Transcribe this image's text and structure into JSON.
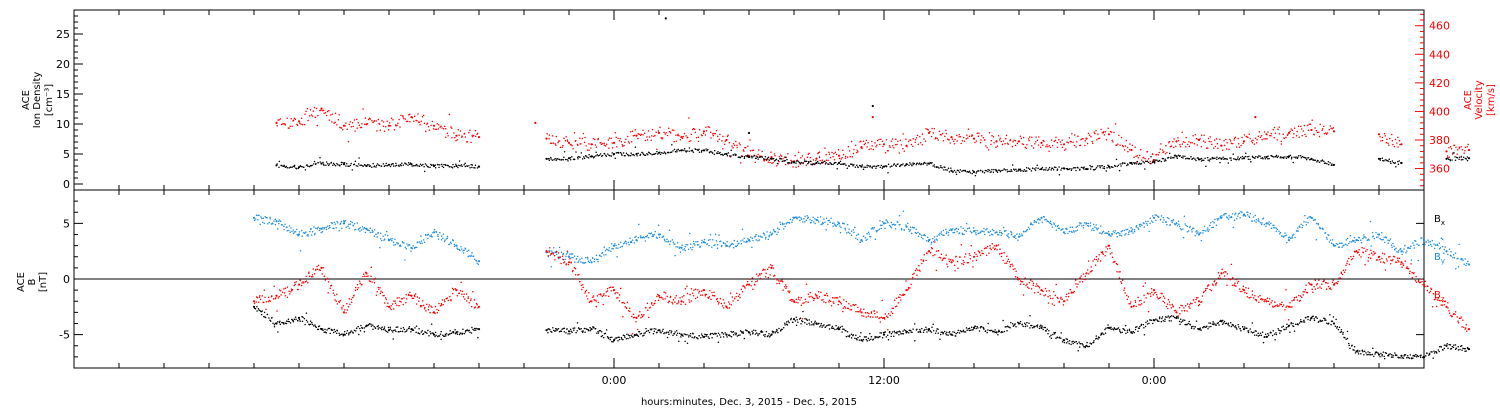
{
  "chart_data": [
    {
      "type": "scatter",
      "panel": "top",
      "left_axis": {
        "label_lines": [
          "ACE",
          "Ion Density",
          "[cm⁻³]"
        ],
        "range": [
          -1,
          29
        ],
        "ticks": [
          0,
          5,
          10,
          15,
          20,
          25
        ],
        "color": "#000000"
      },
      "right_axis": {
        "label_lines": [
          "ACE",
          "Velocity",
          "[km/s]"
        ],
        "range": [
          345,
          471
        ],
        "ticks": [
          360,
          380,
          400,
          420,
          440,
          460
        ],
        "color": "#ff0000"
      },
      "series": [
        {
          "axis": "left",
          "color": "#000000",
          "points": [
            [
              -15,
              3.1
            ],
            [
              -14,
              2.8
            ],
            [
              -13,
              3.4
            ],
            [
              -12,
              3.3
            ],
            [
              -11,
              3.0
            ],
            [
              -10,
              3.2
            ],
            [
              -9,
              3.3
            ],
            [
              -8,
              3.0
            ],
            [
              -7,
              3.0
            ],
            [
              -6,
              2.9
            ],
            [
              -3,
              4.2
            ],
            [
              -2,
              4.3
            ],
            [
              -1,
              4.6
            ],
            [
              0,
              5.0
            ],
            [
              1,
              5.0
            ],
            [
              2,
              5.2
            ],
            [
              3,
              5.6
            ],
            [
              4,
              5.6
            ],
            [
              5,
              5.0
            ],
            [
              6,
              4.5
            ],
            [
              7,
              4.2
            ],
            [
              8,
              3.6
            ],
            [
              9,
              3.5
            ],
            [
              10,
              3.5
            ],
            [
              11,
              2.9
            ],
            [
              12,
              2.9
            ],
            [
              13,
              3.3
            ],
            [
              14,
              3.4
            ],
            [
              15,
              2.2
            ],
            [
              16,
              2.0
            ],
            [
              17,
              2.2
            ],
            [
              18,
              2.4
            ],
            [
              19,
              2.5
            ],
            [
              20,
              2.6
            ],
            [
              21,
              2.5
            ],
            [
              22,
              2.9
            ],
            [
              23,
              3.5
            ],
            [
              24,
              3.7
            ],
            [
              25,
              4.6
            ],
            [
              26,
              4.1
            ],
            [
              27,
              4.2
            ],
            [
              28,
              4.3
            ],
            [
              29,
              4.5
            ],
            [
              30,
              4.6
            ],
            [
              31,
              4.2
            ],
            [
              32,
              3.2
            ],
            [
              34,
              4.2
            ],
            [
              35,
              3.5
            ],
            [
              37,
              4.2
            ],
            [
              38,
              4.3
            ]
          ],
          "extra_points": [
            [
              2.3,
              27.6
            ],
            [
              11.5,
              13.0
            ],
            [
              6.0,
              8.5
            ]
          ]
        },
        {
          "axis": "right",
          "color": "#ff0000",
          "points": [
            [
              -15,
              392
            ],
            [
              -14,
              393
            ],
            [
              -13,
              402
            ],
            [
              -12,
              390
            ],
            [
              -11,
              391
            ],
            [
              -10,
              390
            ],
            [
              -9,
              396
            ],
            [
              -8,
              390
            ],
            [
              -7,
              383
            ],
            [
              -6,
              382
            ],
            [
              -3,
              381
            ],
            [
              -2,
              378
            ],
            [
              -1,
              377
            ],
            [
              0,
              378
            ],
            [
              1,
              383
            ],
            [
              2,
              385
            ],
            [
              3,
              382
            ],
            [
              4,
              386
            ],
            [
              5,
              380
            ],
            [
              6,
              369
            ],
            [
              7,
              368
            ],
            [
              8,
              365
            ],
            [
              9,
              367
            ],
            [
              10,
              369
            ],
            [
              11,
              375
            ],
            [
              12,
              377
            ],
            [
              13,
              376
            ],
            [
              14,
              385
            ],
            [
              15,
              382
            ],
            [
              16,
              381
            ],
            [
              17,
              379
            ],
            [
              18,
              379
            ],
            [
              19,
              378
            ],
            [
              20,
              377
            ],
            [
              21,
              381
            ],
            [
              22,
              384
            ],
            [
              23,
              373
            ],
            [
              24,
              366
            ],
            [
              25,
              379
            ],
            [
              26,
              380
            ],
            [
              27,
              376
            ],
            [
              28,
              379
            ],
            [
              29,
              384
            ],
            [
              30,
              385
            ],
            [
              31,
              387
            ],
            [
              32,
              386
            ],
            [
              34,
              384
            ],
            [
              35,
              377
            ],
            [
              37,
              372
            ],
            [
              38,
              373
            ]
          ],
          "extra_points": [
            [
              11.5,
              396
            ],
            [
              -3.5,
              392
            ],
            [
              28.5,
              396
            ]
          ]
        }
      ]
    },
    {
      "type": "scatter",
      "panel": "bottom",
      "left_axis": {
        "label_lines": [
          "ACE",
          "B",
          "[nT]"
        ],
        "range": [
          -8,
          8
        ],
        "ticks": [
          -5,
          0,
          5
        ],
        "color": "#000000"
      },
      "zero_line": 0,
      "legend": [
        {
          "text": "Bx",
          "color": "#000000"
        },
        {
          "text": "By",
          "color": "#1f8fe0"
        },
        {
          "text": "Bz",
          "color": "#ff0000"
        }
      ],
      "series": [
        {
          "name": "Bx",
          "color": "#000000",
          "points": [
            [
              -16,
              -2.5
            ],
            [
              -15,
              -4.0
            ],
            [
              -14,
              -3.5
            ],
            [
              -13,
              -4.5
            ],
            [
              -12,
              -5.0
            ],
            [
              -11,
              -4.2
            ],
            [
              -10,
              -4.6
            ],
            [
              -9,
              -4.5
            ],
            [
              -8,
              -5.0
            ],
            [
              -7,
              -4.8
            ],
            [
              -6,
              -4.5
            ],
            [
              -3,
              -4.6
            ],
            [
              -2,
              -4.7
            ],
            [
              -1,
              -4.5
            ],
            [
              0,
              -5.5
            ],
            [
              1,
              -5.0
            ],
            [
              2,
              -4.6
            ],
            [
              3,
              -5.0
            ],
            [
              4,
              -5.2
            ],
            [
              5,
              -5.0
            ],
            [
              6,
              -4.8
            ],
            [
              7,
              -5.0
            ],
            [
              8,
              -3.6
            ],
            [
              9,
              -4.0
            ],
            [
              10,
              -4.5
            ],
            [
              11,
              -5.5
            ],
            [
              12,
              -5.0
            ],
            [
              13,
              -4.8
            ],
            [
              14,
              -4.5
            ],
            [
              15,
              -5.0
            ],
            [
              16,
              -4.4
            ],
            [
              17,
              -4.8
            ],
            [
              18,
              -4.0
            ],
            [
              19,
              -4.4
            ],
            [
              20,
              -5.5
            ],
            [
              21,
              -6.0
            ],
            [
              22,
              -4.4
            ],
            [
              23,
              -4.8
            ],
            [
              24,
              -3.7
            ],
            [
              25,
              -3.5
            ],
            [
              26,
              -4.5
            ],
            [
              27,
              -3.8
            ],
            [
              28,
              -4.5
            ],
            [
              29,
              -5.2
            ],
            [
              30,
              -4.2
            ],
            [
              31,
              -3.5
            ],
            [
              32,
              -4.0
            ],
            [
              33,
              -6.5
            ],
            [
              34,
              -6.8
            ],
            [
              35,
              -6.9
            ],
            [
              36,
              -7.0
            ],
            [
              37,
              -6.0
            ],
            [
              38,
              -6.3
            ]
          ]
        },
        {
          "name": "By",
          "color": "#1f8fe0",
          "points": [
            [
              -16,
              5.5
            ],
            [
              -15,
              5.2
            ],
            [
              -14,
              4.0
            ],
            [
              -13,
              4.5
            ],
            [
              -12,
              5.0
            ],
            [
              -11,
              4.5
            ],
            [
              -10,
              3.5
            ],
            [
              -9,
              2.8
            ],
            [
              -8,
              4.2
            ],
            [
              -7,
              3.0
            ],
            [
              -6,
              1.6
            ],
            [
              -3,
              2.4
            ],
            [
              -2,
              2.0
            ],
            [
              -1,
              1.5
            ],
            [
              0,
              3.0
            ],
            [
              1,
              3.5
            ],
            [
              2,
              4.0
            ],
            [
              3,
              2.8
            ],
            [
              4,
              3.3
            ],
            [
              5,
              3.0
            ],
            [
              6,
              3.5
            ],
            [
              7,
              4.0
            ],
            [
              8,
              5.5
            ],
            [
              9,
              5.3
            ],
            [
              10,
              5.0
            ],
            [
              11,
              3.5
            ],
            [
              12,
              5.0
            ],
            [
              13,
              4.7
            ],
            [
              14,
              3.5
            ],
            [
              15,
              4.4
            ],
            [
              16,
              4.3
            ],
            [
              17,
              4.2
            ],
            [
              18,
              3.8
            ],
            [
              19,
              5.5
            ],
            [
              20,
              4.2
            ],
            [
              21,
              5.0
            ],
            [
              22,
              4.0
            ],
            [
              23,
              4.3
            ],
            [
              24,
              5.5
            ],
            [
              25,
              5.0
            ],
            [
              26,
              4.0
            ],
            [
              27,
              5.5
            ],
            [
              28,
              5.8
            ],
            [
              29,
              5.0
            ],
            [
              30,
              3.5
            ],
            [
              31,
              5.5
            ],
            [
              32,
              3.0
            ],
            [
              33,
              3.5
            ],
            [
              34,
              4.0
            ],
            [
              35,
              2.5
            ],
            [
              36,
              3.5
            ],
            [
              37,
              2.5
            ],
            [
              38,
              1.3
            ]
          ]
        },
        {
          "name": "Bz",
          "color": "#ff0000",
          "points": [
            [
              -16,
              -2.0
            ],
            [
              -15,
              -1.5
            ],
            [
              -14,
              -0.5
            ],
            [
              -13,
              1.0
            ],
            [
              -12,
              -3.0
            ],
            [
              -11,
              0.5
            ],
            [
              -10,
              -2.5
            ],
            [
              -9,
              -1.5
            ],
            [
              -8,
              -3.0
            ],
            [
              -7,
              -1.0
            ],
            [
              -6,
              -2.5
            ],
            [
              -3,
              2.5
            ],
            [
              -2,
              1.5
            ],
            [
              -1,
              -2.0
            ],
            [
              0,
              -1.0
            ],
            [
              1,
              -3.5
            ],
            [
              2,
              -1.5
            ],
            [
              3,
              -2.0
            ],
            [
              4,
              -1.0
            ],
            [
              5,
              -2.5
            ],
            [
              6,
              -0.5
            ],
            [
              7,
              1.0
            ],
            [
              8,
              -2.0
            ],
            [
              9,
              -1.5
            ],
            [
              10,
              -2.0
            ],
            [
              11,
              -3.0
            ],
            [
              12,
              -3.5
            ],
            [
              13,
              -1.0
            ],
            [
              14,
              2.5
            ],
            [
              15,
              1.5
            ],
            [
              16,
              2.0
            ],
            [
              17,
              3.0
            ],
            [
              18,
              0.0
            ],
            [
              19,
              -1.0
            ],
            [
              20,
              -2.0
            ],
            [
              21,
              0.5
            ],
            [
              22,
              3.0
            ],
            [
              23,
              -2.5
            ],
            [
              24,
              -1.0
            ],
            [
              25,
              -3.0
            ],
            [
              26,
              -2.0
            ],
            [
              27,
              0.5
            ],
            [
              28,
              -1.0
            ],
            [
              29,
              -2.0
            ],
            [
              30,
              -2.5
            ],
            [
              31,
              -0.5
            ],
            [
              32,
              -0.5
            ],
            [
              33,
              2.5
            ],
            [
              34,
              2.0
            ],
            [
              35,
              1.5
            ],
            [
              36,
              -0.5
            ],
            [
              37,
              -2.5
            ],
            [
              38,
              -4.5
            ]
          ]
        }
      ]
    }
  ],
  "x_axis": {
    "range_hours": [
      -24,
      36
    ],
    "ticks": [
      {
        "hours": 0,
        "label": "0:00"
      },
      {
        "hours": 12,
        "label": "12:00"
      },
      {
        "hours": 24,
        "label": "0:00"
      }
    ],
    "minor_step_hours": 2,
    "xlabel": "hours:minutes, Dec.  3, 2015 - Dec.  5, 2015"
  }
}
